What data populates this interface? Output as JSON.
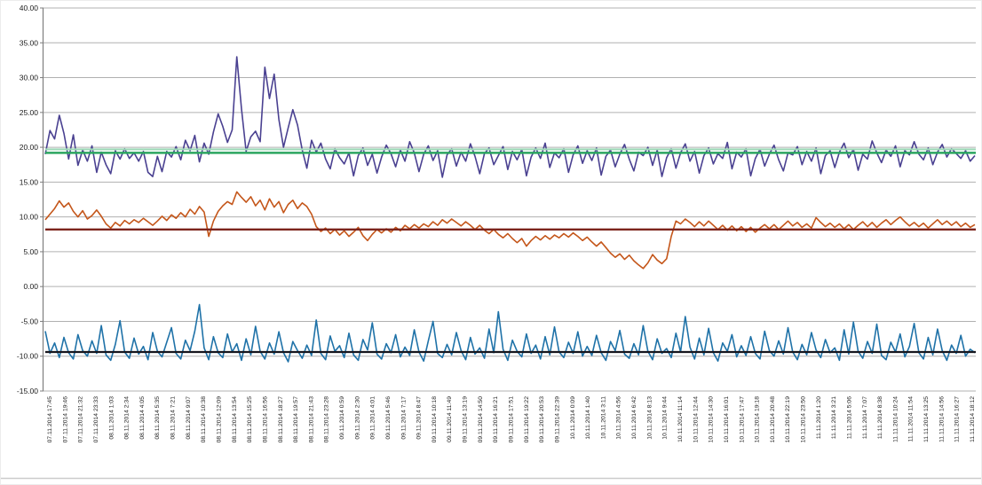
{
  "chart_data": {
    "type": "line",
    "title": "",
    "xlabel": "",
    "ylabel": "",
    "ylim": [
      -15,
      40
    ],
    "grid": true,
    "legend_position": "none",
    "grid_color": "#b0b0b0",
    "axis_color": "#7f7f7f",
    "ytick_values": [
      40,
      35,
      30,
      25,
      20,
      15,
      10,
      5,
      0,
      -5,
      -10,
      -15
    ],
    "ytick_labels": [
      "40.00",
      "35.00",
      "30.00",
      "25.00",
      "20.00",
      "15.00",
      "10.00",
      "5.00",
      "0.00",
      "-5.00",
      "-10.00",
      "-15.00"
    ],
    "x_axis_labels": [
      "07.11.2014 17:45",
      "07.11.2014 19:46",
      "07.11.2014 21:32",
      "07.11.2014 23:33",
      "08.11.2014 1:03",
      "08.11.2014 2:34",
      "08.11.2014 4:05",
      "08.11.2014 5:35",
      "08.11.2014 7:21",
      "08.11.2014 9:07",
      "08.11.2014 10:38",
      "08.11.2014 12:09",
      "08.11.2014 13:54",
      "08.11.2014 15:25",
      "08.11.2014 16:56",
      "08.11.2014 18:27",
      "08.11.2014 19:57",
      "08.11.2014 21:43",
      "08.11.2014 23:28",
      "09.11.2014 0:59",
      "09.11.2014 2:30",
      "09.11.2014 4:01",
      "09.11.2014 5:46",
      "09.11.2014 7:17",
      "09.11.2014 8:47",
      "09.11.2014 10:18",
      "09.11.2014 11:49",
      "09.11.2014 13:19",
      "09.11.2014 14:50",
      "09.11.2014 16:21",
      "09.11.2014 17:51",
      "09.11.2014 19:22",
      "09.11.2014 20:53",
      "09.11.2014 22:39",
      "10.11.2014 0:09",
      "10.11.2014 1:40",
      "10.11.2014 3:11",
      "10.11.2014 4:56",
      "10.11.2014 6:42",
      "10.11.2014 8:13",
      "10.11.2014 9:44",
      "10.11.2014 11:14",
      "10.11.2014 12:44",
      "10.11.2014 14:30",
      "10.11.2014 16:01",
      "10.11.2014 17:47",
      "10.11.2014 19:18",
      "10.11.2014 20:48",
      "10.11.2014 22:19",
      "10.11.2014 23:50",
      "11.11.2014 1:20",
      "11.11.2014 3:21",
      "11.11.2014 5:06",
      "11.11.2014 7:07",
      "11.11.2014 8:38",
      "11.11.2014 10:24",
      "11.11.2014 11:54",
      "11.11.2014 13:25",
      "11.11.2014 14:56",
      "11.11.2014 16:27",
      "11.11.2014 18:12"
    ],
    "series": [
      {
        "name": "upper-series-purple",
        "color": "#4a4191",
        "stroke_width": 1.6,
        "values": [
          19,
          22.4,
          21.2,
          24.6,
          22,
          18.3,
          21.8,
          17.4,
          19.6,
          18,
          20.2,
          16.4,
          19.3,
          17.5,
          16.2,
          19.5,
          18.3,
          19.8,
          18.4,
          19.2,
          18,
          19.4,
          16.4,
          15.8,
          18.7,
          16.5,
          19.4,
          18.6,
          20.1,
          18.2,
          21,
          19.5,
          21.7,
          17.9,
          20.6,
          19,
          22.2,
          24.8,
          23,
          20.7,
          22.5,
          33,
          25.5,
          19.4,
          21.5,
          22.3,
          20.8,
          31.5,
          27,
          30.5,
          24,
          20,
          22.8,
          25.4,
          23.2,
          19.6,
          17,
          21,
          19.3,
          20.6,
          18.3,
          16.9,
          19.8,
          18.5,
          17.6,
          19.2,
          15.9,
          18.8,
          19.9,
          17.4,
          19,
          16.3,
          18.6,
          20.3,
          19.1,
          17.2,
          19.6,
          18,
          20.8,
          19.2,
          16.5,
          19,
          20.2,
          18.1,
          19.5,
          15.7,
          18.9,
          19.8,
          17.3,
          19.3,
          18,
          20.5,
          18.7,
          16.2,
          19.1,
          19.9,
          17.5,
          18.8,
          20.1,
          16.8,
          19.4,
          18.2,
          19.7,
          15.9,
          18.6,
          19.9,
          18.4,
          20.6,
          17.1,
          19.2,
          18.5,
          19.8,
          16.4,
          18.9,
          20.2,
          17.7,
          19.5,
          18.1,
          19.9,
          16,
          18.7,
          19.6,
          17.2,
          19,
          20.4,
          18.3,
          16.6,
          19.3,
          18.8,
          20,
          17.4,
          19.6,
          15.8,
          18.5,
          19.8,
          17,
          19.2,
          20.5,
          18,
          19.4,
          16.3,
          18.8,
          19.9,
          17.6,
          19.1,
          18.4,
          20.7,
          16.9,
          19.3,
          18.6,
          19.8,
          15.9,
          18.4,
          19.7,
          17.3,
          19,
          20.3,
          18.2,
          16.6,
          19.2,
          18.9,
          20.1,
          17.5,
          19.4,
          18,
          19.9,
          16.2,
          18.8,
          19.5,
          17.1,
          19.3,
          20.6,
          18.5,
          19.7,
          16.7,
          19,
          18.3,
          20.9,
          19.2,
          17.8,
          19.6,
          18.7,
          20.2,
          17.2,
          19.5,
          18.9,
          20.8,
          19,
          18.2,
          19.9,
          17.5,
          19.3,
          20.4,
          18.6,
          19.8,
          19.1,
          18.4,
          19.5,
          18,
          18.8
        ]
      },
      {
        "name": "middle-series-orange",
        "color": "#c4561a",
        "stroke_width": 1.6,
        "values": [
          9.6,
          10.4,
          11.2,
          12.3,
          11.4,
          12,
          10.8,
          10,
          10.9,
          9.7,
          10.2,
          11,
          10.1,
          9,
          8.4,
          9.2,
          8.7,
          9.5,
          9,
          9.6,
          9.2,
          9.8,
          9.3,
          8.8,
          9.4,
          10.1,
          9.5,
          10.3,
          9.8,
          10.6,
          10,
          11.1,
          10.4,
          11.5,
          10.7,
          7.2,
          9.4,
          10.8,
          11.6,
          12.2,
          11.8,
          13.6,
          12.8,
          12.1,
          12.9,
          11.6,
          12.4,
          11,
          12.6,
          11.4,
          12.2,
          10.6,
          11.8,
          12.4,
          11.2,
          12,
          11.5,
          10.4,
          8.6,
          7.9,
          8.4,
          7.6,
          8.2,
          7.4,
          8,
          7.2,
          7.8,
          8.5,
          7.3,
          6.6,
          7.5,
          8.2,
          7.7,
          8.3,
          7.8,
          8.5,
          8,
          8.8,
          8.3,
          8.9,
          8.4,
          9,
          8.6,
          9.3,
          8.8,
          9.6,
          9.1,
          9.7,
          9.2,
          8.7,
          9.3,
          8.8,
          8.2,
          8.8,
          8.1,
          7.6,
          8.2,
          7.5,
          7,
          7.6,
          6.9,
          6.3,
          6.9,
          5.8,
          6.6,
          7.2,
          6.7,
          7.3,
          6.8,
          7.4,
          7,
          7.6,
          7.1,
          7.7,
          7.2,
          6.6,
          7.1,
          6.4,
          5.8,
          6.4,
          5.6,
          4.8,
          4.2,
          4.7,
          3.9,
          4.5,
          3.7,
          3.1,
          2.6,
          3.4,
          4.6,
          3.8,
          3.3,
          4,
          7.2,
          9.4,
          9,
          9.7,
          9.2,
          8.6,
          9.3,
          8.7,
          9.4,
          8.8,
          8.2,
          8.8,
          8.1,
          8.7,
          8,
          8.6,
          7.9,
          8.5,
          7.8,
          8.4,
          8.9,
          8.3,
          8.9,
          8.2,
          8.8,
          9.4,
          8.7,
          9.2,
          8.5,
          9,
          8.4,
          9.9,
          9.2,
          8.6,
          9.1,
          8.5,
          9,
          8.3,
          8.9,
          8.2,
          8.8,
          9.3,
          8.6,
          9.2,
          8.5,
          9.1,
          9.6,
          8.9,
          9.5,
          10,
          9.3,
          8.7,
          9.2,
          8.6,
          9.1,
          8.4,
          9,
          9.6,
          8.9,
          9.4,
          8.8,
          9.3,
          8.6,
          9.1,
          8.5,
          8.9
        ]
      },
      {
        "name": "lower-series-blue",
        "color": "#1f72a8",
        "stroke_width": 1.6,
        "values": [
          -6.4,
          -9.6,
          -8.1,
          -10.2,
          -7.3,
          -9.5,
          -10.4,
          -6.9,
          -9.2,
          -10,
          -7.8,
          -9.6,
          -5.6,
          -9.8,
          -10.6,
          -8.3,
          -4.9,
          -9.4,
          -10.3,
          -7.4,
          -9.7,
          -8.6,
          -10.5,
          -6.6,
          -9.3,
          -10.1,
          -8,
          -5.9,
          -9.6,
          -10.4,
          -7.7,
          -9.2,
          -6.4,
          -2.6,
          -8.8,
          -10.5,
          -7.2,
          -9.5,
          -10.2,
          -6.8,
          -9.4,
          -8.2,
          -10.6,
          -7.5,
          -9.8,
          -5.7,
          -9.3,
          -10.4,
          -8.1,
          -9.7,
          -6.5,
          -9.5,
          -10.8,
          -7.9,
          -9.2,
          -10.3,
          -8.4,
          -9.9,
          -4.8,
          -9.6,
          -10.5,
          -7.1,
          -9.3,
          -8.5,
          -10.2,
          -6.7,
          -9.8,
          -10.6,
          -7.6,
          -9.1,
          -5.2,
          -9.7,
          -10.4,
          -8.2,
          -9.5,
          -6.9,
          -10.1,
          -8.7,
          -9.9,
          -6.2,
          -9.4,
          -10.7,
          -7.8,
          -5,
          -9.6,
          -10.2,
          -8.3,
          -9.8,
          -6.6,
          -9.2,
          -10.5,
          -7.3,
          -9.7,
          -8.8,
          -10.3,
          -6.1,
          -9.5,
          -3.6,
          -9,
          -10.6,
          -7.7,
          -9.3,
          -10.1,
          -6.8,
          -9.6,
          -8.4,
          -10.4,
          -7.2,
          -9.8,
          -5.8,
          -9.4,
          -10.2,
          -8,
          -9.6,
          -6.5,
          -10,
          -8.6,
          -9.9,
          -7,
          -9.5,
          -10.6,
          -7.9,
          -9.2,
          -6.3,
          -9.7,
          -10.3,
          -8.2,
          -9.8,
          -5.6,
          -9.3,
          -10.5,
          -7.5,
          -9.6,
          -8.9,
          -10.2,
          -6.7,
          -9.4,
          -4.3,
          -8.7,
          -10.4,
          -7.4,
          -9.8,
          -6,
          -9.5,
          -10.7,
          -8.1,
          -9.3,
          -6.9,
          -10.1,
          -8.5,
          -9.9,
          -7.2,
          -9.6,
          -10.4,
          -6.4,
          -9.2,
          -10,
          -7.8,
          -9.7,
          -5.9,
          -9.4,
          -10.5,
          -8.3,
          -9.8,
          -6.6,
          -9.1,
          -10.2,
          -7.6,
          -9.5,
          -8.8,
          -10.6,
          -6.2,
          -9.7,
          -5.1,
          -9.3,
          -10.3,
          -7.9,
          -9.6,
          -5.4,
          -9.9,
          -10.5,
          -8,
          -9.4,
          -6.8,
          -10.1,
          -8.6,
          -5.3,
          -9.5,
          -10.4,
          -7.3,
          -9.8,
          -6.1,
          -9.2,
          -10.6,
          -8.4,
          -9.6,
          -7,
          -10,
          -9,
          -9.5
        ]
      }
    ],
    "reference_lines": [
      {
        "name": "green-band-light",
        "value": 19.7,
        "color": "#9dd8b6",
        "stroke_width": 2.2
      },
      {
        "name": "green-reference-line",
        "value": 19.2,
        "color": "#2aa55f",
        "stroke_width": 2.6
      },
      {
        "name": "dark-red-reference-line",
        "value": 8.2,
        "color": "#7c241c",
        "stroke_width": 2.4
      },
      {
        "name": "black-reference-line",
        "value": -9.4,
        "color": "#16161e",
        "stroke_width": 2.2
      }
    ]
  }
}
